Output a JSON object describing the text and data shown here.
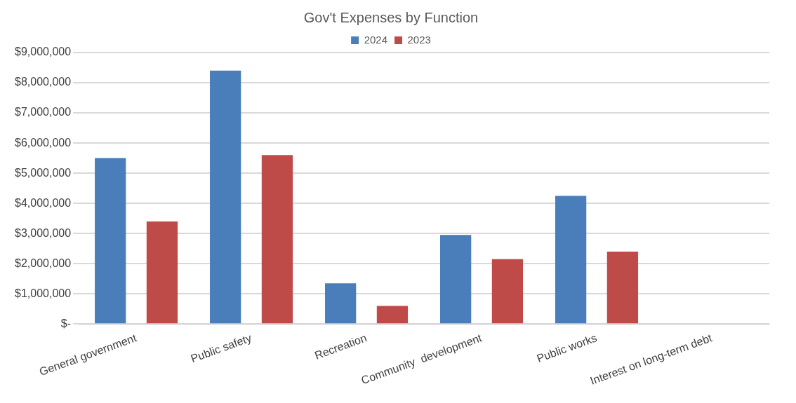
{
  "chart_data": {
    "type": "bar",
    "title": "Gov't Expenses by Function",
    "categories": [
      "General government",
      "Public safety",
      "Recreation",
      "Community  development",
      "Public works",
      "Interest on long-term debt"
    ],
    "series": [
      {
        "name": "2024",
        "color": "#4a7ebb",
        "values": [
          5500000,
          8400000,
          1350000,
          2950000,
          4250000,
          0
        ]
      },
      {
        "name": "2023",
        "color": "#be4b48",
        "values": [
          3400000,
          5600000,
          600000,
          2150000,
          2400000,
          0
        ]
      }
    ],
    "ylim": [
      0,
      9000000
    ],
    "yticks": [
      {
        "value": 0,
        "label": "$-"
      },
      {
        "value": 1000000,
        "label": "$1,000,000"
      },
      {
        "value": 2000000,
        "label": "$2,000,000"
      },
      {
        "value": 3000000,
        "label": "$3,000,000"
      },
      {
        "value": 4000000,
        "label": "$4,000,000"
      },
      {
        "value": 5000000,
        "label": "$5,000,000"
      },
      {
        "value": 6000000,
        "label": "$6,000,000"
      },
      {
        "value": 7000000,
        "label": "$7,000,000"
      },
      {
        "value": 8000000,
        "label": "$8,000,000"
      },
      {
        "value": 9000000,
        "label": "$9,000,000"
      }
    ],
    "grid": "y",
    "legend": "top"
  }
}
